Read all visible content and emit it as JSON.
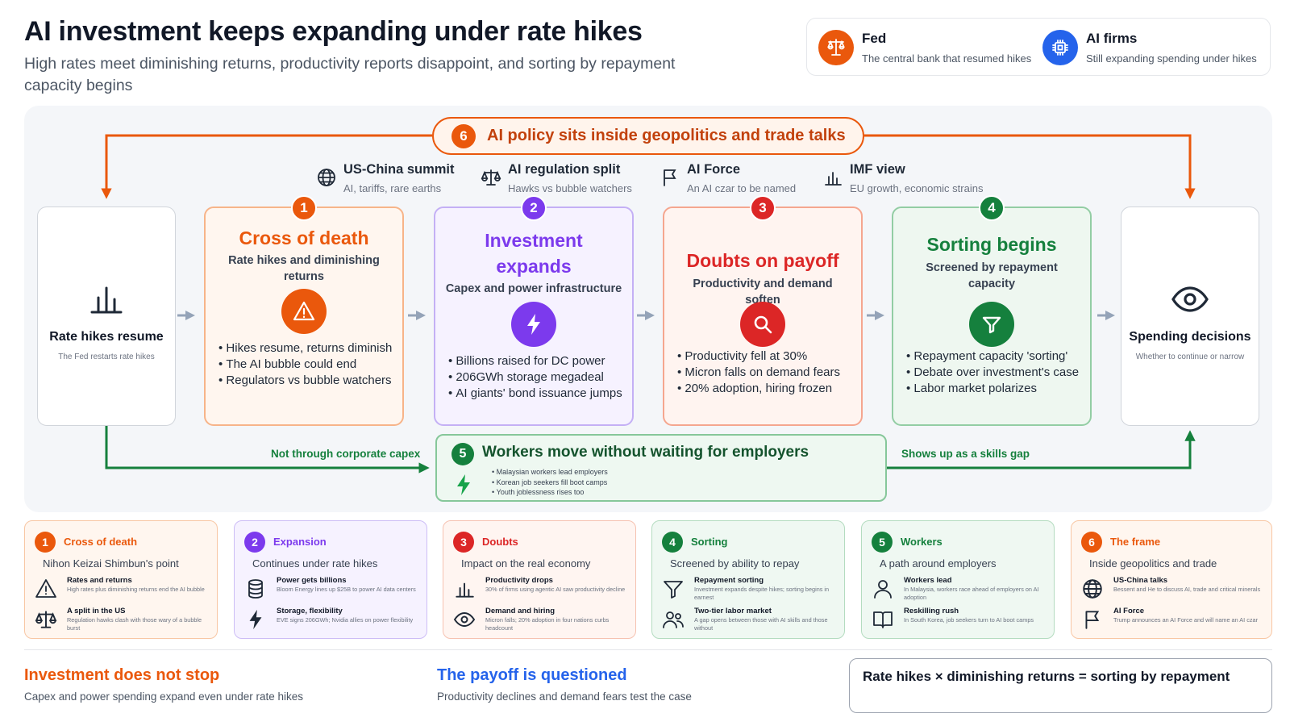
{
  "header": {
    "title": "AI investment keeps expanding under rate hikes",
    "subtitle": "High rates meet diminishing returns, productivity reports disappoint, and sorting by repayment capacity begins"
  },
  "legend": [
    {
      "name": "Fed",
      "desc": "The central bank that resumed hikes",
      "icon": "scale-banner-icon",
      "color": "#ea580c"
    },
    {
      "name": "AI firms",
      "desc": "Still expanding spending under hikes",
      "icon": "chip-icon",
      "color": "#2563eb"
    }
  ],
  "policy": {
    "number": "6",
    "text": "AI policy sits inside geopolitics and trade talks"
  },
  "geo": [
    {
      "title": "US-China summit",
      "sub": "AI, tariffs, rare earths",
      "icon": "globe-icon"
    },
    {
      "title": "AI regulation split",
      "sub": "Hawks vs bubble watchers",
      "icon": "balance-scale-icon"
    },
    {
      "title": "AI Force",
      "sub": "An AI czar to be named",
      "icon": "flag-icon"
    },
    {
      "title": "IMF view",
      "sub": "EU growth, economic strains",
      "icon": "bar-chart-icon"
    }
  ],
  "start": {
    "title": "Rate hikes resume",
    "sub": "The Fed restarts rate hikes",
    "icon": "bar-chart-icon"
  },
  "end": {
    "title": "Spending decisions",
    "sub": "Whether to continue or narrow",
    "icon": "eye-icon"
  },
  "stages": [
    {
      "number": "1",
      "title": "Cross of death",
      "sub": "Rate hikes and diminishing returns",
      "icon": "warning-icon",
      "color": "#ea580c",
      "bullets": [
        "Hikes resume, returns diminish",
        "The AI bubble could end",
        "Regulators vs bubble watchers"
      ]
    },
    {
      "number": "2",
      "title": "Investment expands",
      "sub": "Capex and power infrastructure",
      "icon": "lightning-icon",
      "color": "#7c3aed",
      "bullets": [
        "Billions raised for DC power",
        "206GWh storage megadeal",
        "AI giants' bond issuance jumps"
      ]
    },
    {
      "number": "3",
      "title": "Doubts on payoff",
      "sub": "Productivity and demand soften",
      "icon": "search-icon",
      "color": "#dc2626",
      "bullets": [
        "Productivity fell at 30%",
        "Micron falls on demand fears",
        "20% adoption, hiring frozen"
      ]
    },
    {
      "number": "4",
      "title": "Sorting begins",
      "sub": "Screened by repayment capacity",
      "icon": "filter-icon",
      "color": "#15803d",
      "bullets": [
        "Repayment capacity 'sorting'",
        "Debate over investment's case",
        "Labor market polarizes"
      ]
    }
  ],
  "workers": {
    "number": "5",
    "title": "Workers move without waiting for employers",
    "icon": "lightning-icon",
    "bullets": [
      "Malaysian workers lead employers",
      "Korean job seekers fill boot camps",
      "Youth joblessness rises too"
    ],
    "left_label": "Not through corporate capex",
    "right_label": "Shows up as a skills gap"
  },
  "bottom_cards": [
    {
      "number": "1",
      "title": "Cross of death",
      "sub": "Nihon Keizai Shimbun's point",
      "color": "#ea580c",
      "items": [
        {
          "head": "Rates and returns",
          "desc": "High rates plus diminishing returns end the AI bubble",
          "icon": "warning-icon"
        },
        {
          "head": "A split in the US",
          "desc": "Regulation hawks clash with those wary of a bubble burst",
          "icon": "balance-scale-icon"
        }
      ]
    },
    {
      "number": "2",
      "title": "Expansion",
      "sub": "Continues under rate hikes",
      "color": "#7c3aed",
      "items": [
        {
          "head": "Power gets billions",
          "desc": "Bloom Energy lines up $25B to power AI data centers",
          "icon": "database-icon"
        },
        {
          "head": "Storage, flexibility",
          "desc": "EVE signs 206GWh; Nvidia allies on power flexibility",
          "icon": "lightning-icon"
        }
      ]
    },
    {
      "number": "3",
      "title": "Doubts",
      "sub": "Impact on the real economy",
      "color": "#dc2626",
      "items": [
        {
          "head": "Productivity drops",
          "desc": "30% of firms using agentic AI saw productivity decline",
          "icon": "bar-chart-icon"
        },
        {
          "head": "Demand and hiring",
          "desc": "Micron falls; 20% adoption in four nations curbs headcount",
          "icon": "eye-icon"
        }
      ]
    },
    {
      "number": "4",
      "title": "Sorting",
      "sub": "Screened by ability to repay",
      "color": "#15803d",
      "items": [
        {
          "head": "Repayment sorting",
          "desc": "Investment expands despite hikes; sorting begins in earnest",
          "icon": "filter-icon"
        },
        {
          "head": "Two-tier labor market",
          "desc": "A gap opens between those with AI skills and those without",
          "icon": "users-icon"
        }
      ]
    },
    {
      "number": "5",
      "title": "Workers",
      "sub": "A path around employers",
      "color": "#15803d",
      "items": [
        {
          "head": "Workers lead",
          "desc": "In Malaysia, workers race ahead of employers on AI adoption",
          "icon": "user-icon"
        },
        {
          "head": "Reskilling rush",
          "desc": "In South Korea, job seekers turn to AI boot camps",
          "icon": "book-icon"
        }
      ]
    },
    {
      "number": "6",
      "title": "The frame",
      "sub": "Inside geopolitics and trade",
      "color": "#ea580c",
      "items": [
        {
          "head": "US-China talks",
          "desc": "Bessent and He to discuss AI, trade and critical minerals",
          "icon": "globe-icon"
        },
        {
          "head": "AI Force",
          "desc": "Trump announces an AI Force and will name an AI czar",
          "icon": "flag-icon"
        }
      ]
    }
  ],
  "footer": {
    "left_title": "Investment does not stop",
    "left_sub": "Capex and power spending expand even under rate hikes",
    "mid_title": "The payoff is questioned",
    "mid_sub": "Productivity declines and demand fears test the case",
    "formula": "Rate hikes × diminishing returns = sorting by repayment"
  }
}
